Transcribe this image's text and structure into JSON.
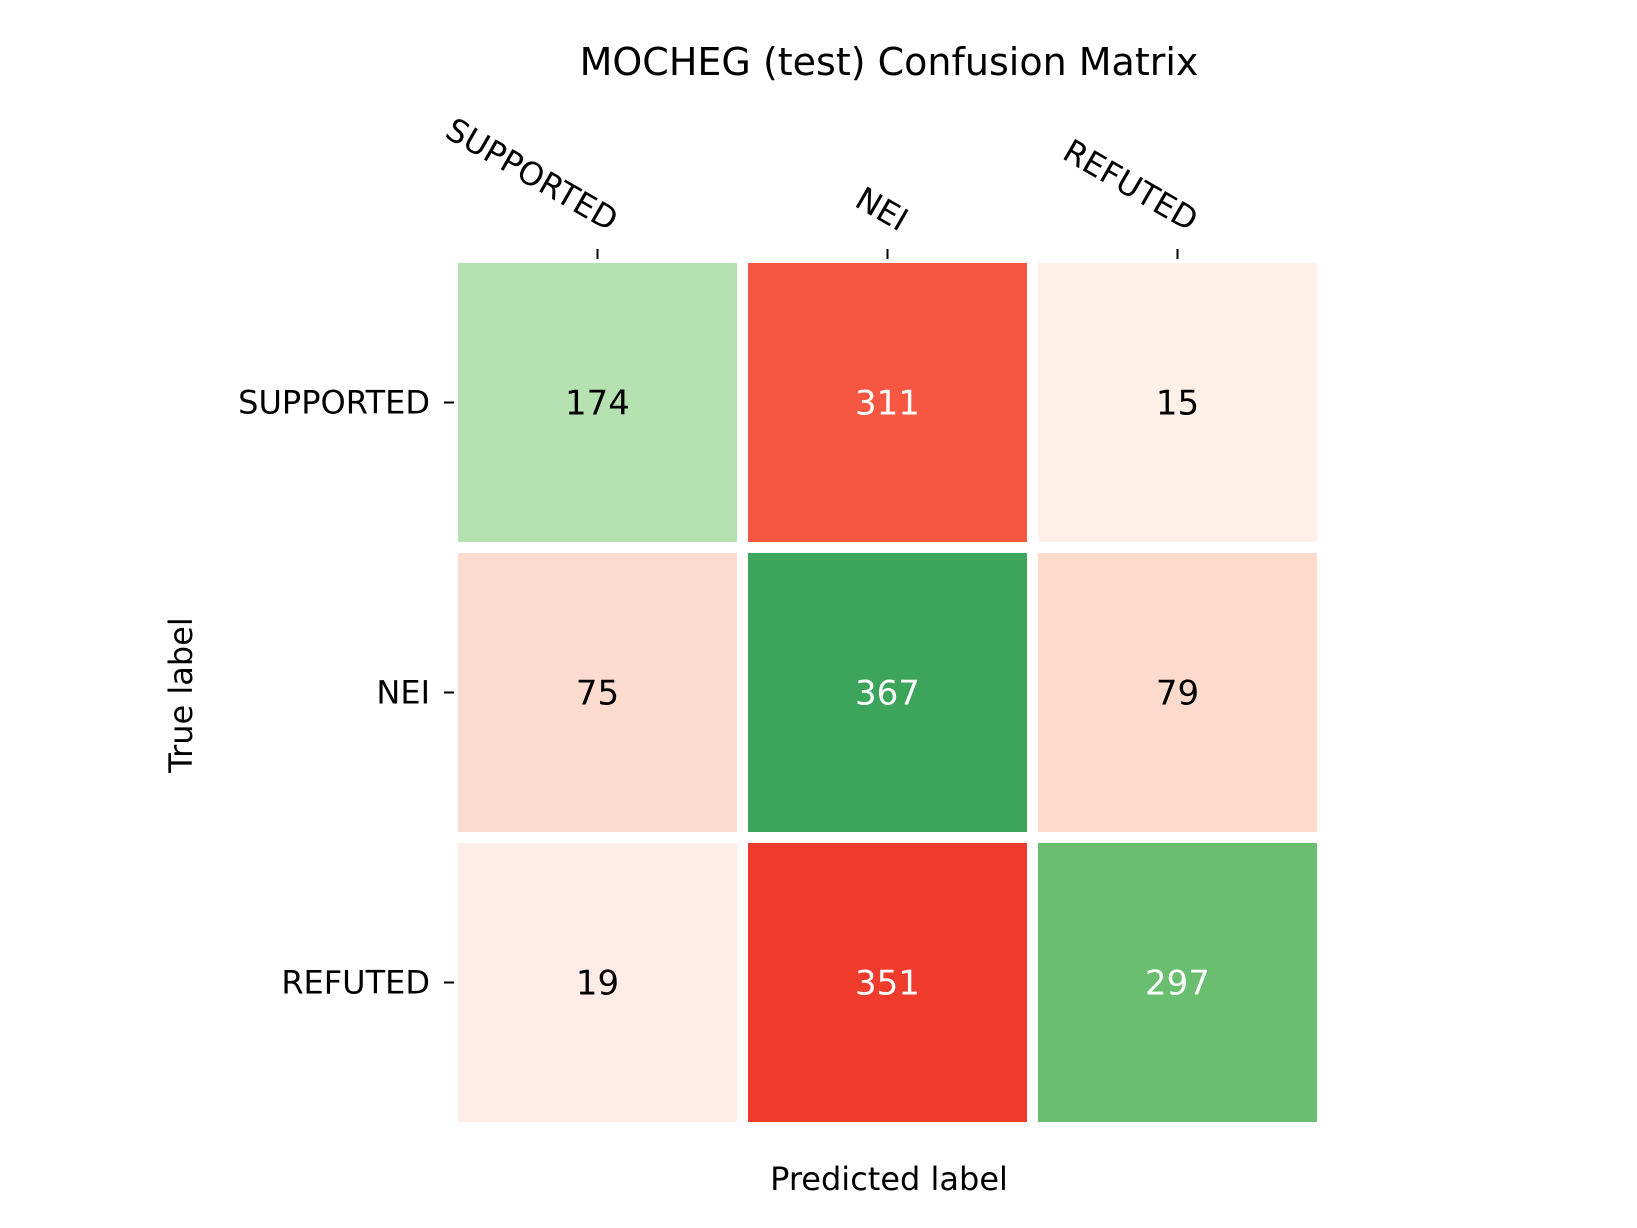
{
  "chart_data": {
    "type": "heatmap",
    "title": "MOCHEG (test) Confusion Matrix",
    "xlabel": "Predicted label",
    "ylabel": "True label",
    "x_categories": [
      "SUPPORTED",
      "NEI",
      "REFUTED"
    ],
    "y_categories": [
      "SUPPORTED",
      "NEI",
      "REFUTED"
    ],
    "values": [
      [
        174,
        311,
        15
      ],
      [
        75,
        367,
        79
      ],
      [
        19,
        351,
        297
      ]
    ],
    "colormap": "green for correct (diagonal), red for incorrect (off-diagonal)",
    "cell_colors": [
      [
        "#b6e1b0",
        "#f55742",
        "#fff0e8"
      ],
      [
        "#fcdcce",
        "#3da55b",
        "#fcdbcd"
      ],
      [
        "#feede7",
        "#ef3b2c",
        "#69bf6f"
      ]
    ],
    "text_colors": [
      [
        "#000000",
        "#ffffff",
        "#000000"
      ],
      [
        "#000000",
        "#ffffff",
        "#000000"
      ],
      [
        "#000000",
        "#ffffff",
        "#ffffff"
      ]
    ],
    "grid": false,
    "colorbar": false
  }
}
